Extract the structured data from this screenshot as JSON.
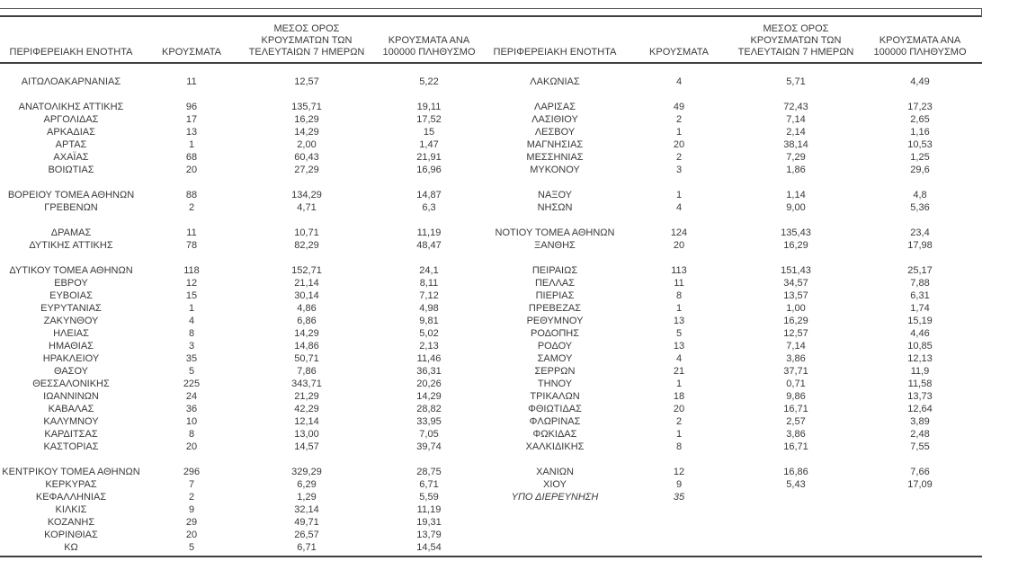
{
  "colors": {
    "text": "#3a3a3a",
    "rule_line": "#3f3f3f",
    "background": "#ffffff"
  },
  "table": {
    "headers": {
      "region": "ΠΕΡΙΦΕΡΕΙΑΚΗ ΕΝΟΤΗΤΑ",
      "cases": "ΚΡΟΥΣΜΑΤΑ",
      "avg_7day": "ΜΕΣΟΣ ΟΡΟΣ ΚΡΟΥΣΜΑΤΩΝ ΤΩΝ ΤΕΛΕΥΤΑΙΩΝ 7 ΗΜΕΡΩΝ",
      "per_100k": "ΚΡΟΥΣΜΑΤΑ ΑΝΑ 100000 ΠΛΗΘΥΣΜΟ"
    },
    "left_rows": [
      {
        "region": "ΑΙΤΩΛΟΑΚΑΡΝΑΝΙΑΣ",
        "cases": "11",
        "avg_7day": "12,57",
        "per_100k": "5,22"
      },
      null,
      {
        "region": "ΑΝΑΤΟΛΙΚΗΣ ΑΤΤΙΚΗΣ",
        "cases": "96",
        "avg_7day": "135,71",
        "per_100k": "19,11"
      },
      {
        "region": "ΑΡΓΟΛΙΔΑΣ",
        "cases": "17",
        "avg_7day": "16,29",
        "per_100k": "17,52"
      },
      {
        "region": "ΑΡΚΑΔΙΑΣ",
        "cases": "13",
        "avg_7day": "14,29",
        "per_100k": "15"
      },
      {
        "region": "ΑΡΤΑΣ",
        "cases": "1",
        "avg_7day": "2,00",
        "per_100k": "1,47"
      },
      {
        "region": "ΑΧΑΪΑΣ",
        "cases": "68",
        "avg_7day": "60,43",
        "per_100k": "21,91"
      },
      {
        "region": "ΒΟΙΩΤΙΑΣ",
        "cases": "20",
        "avg_7day": "27,29",
        "per_100k": "16,96"
      },
      null,
      {
        "region": "ΒΟΡΕΙΟΥ ΤΟΜΕΑ ΑΘΗΝΩΝ",
        "cases": "88",
        "avg_7day": "134,29",
        "per_100k": "14,87"
      },
      {
        "region": "ΓΡΕΒΕΝΩΝ",
        "cases": "2",
        "avg_7day": "4,71",
        "per_100k": "6,3"
      },
      null,
      {
        "region": "ΔΡΑΜΑΣ",
        "cases": "11",
        "avg_7day": "10,71",
        "per_100k": "11,19"
      },
      {
        "region": "ΔΥΤΙΚΗΣ ΑΤΤΙΚΗΣ",
        "cases": "78",
        "avg_7day": "82,29",
        "per_100k": "48,47"
      },
      null,
      {
        "region": "ΔΥΤΙΚΟΥ ΤΟΜΕΑ ΑΘΗΝΩΝ",
        "cases": "118",
        "avg_7day": "152,71",
        "per_100k": "24,1"
      },
      {
        "region": "ΕΒΡΟΥ",
        "cases": "12",
        "avg_7day": "21,14",
        "per_100k": "8,11"
      },
      {
        "region": "ΕΥΒΟΙΑΣ",
        "cases": "15",
        "avg_7day": "30,14",
        "per_100k": "7,12"
      },
      {
        "region": "ΕΥΡΥΤΑΝΙΑΣ",
        "cases": "1",
        "avg_7day": "4,86",
        "per_100k": "4,98"
      },
      {
        "region": "ΖΑΚΥΝΘΟΥ",
        "cases": "4",
        "avg_7day": "6,86",
        "per_100k": "9,81"
      },
      {
        "region": "ΗΛΕΙΑΣ",
        "cases": "8",
        "avg_7day": "14,29",
        "per_100k": "5,02"
      },
      {
        "region": "ΗΜΑΘΙΑΣ",
        "cases": "3",
        "avg_7day": "14,86",
        "per_100k": "2,13"
      },
      {
        "region": "ΗΡΑΚΛΕΙΟΥ",
        "cases": "35",
        "avg_7day": "50,71",
        "per_100k": "11,46"
      },
      {
        "region": "ΘΑΣΟΥ",
        "cases": "5",
        "avg_7day": "7,86",
        "per_100k": "36,31"
      },
      {
        "region": "ΘΕΣΣΑΛΟΝΙΚΗΣ",
        "cases": "225",
        "avg_7day": "343,71",
        "per_100k": "20,26"
      },
      {
        "region": "ΙΩΑΝΝΙΝΩΝ",
        "cases": "24",
        "avg_7day": "21,29",
        "per_100k": "14,29"
      },
      {
        "region": "ΚΑΒΑΛΑΣ",
        "cases": "36",
        "avg_7day": "42,29",
        "per_100k": "28,82"
      },
      {
        "region": "ΚΑΛΥΜΝΟΥ",
        "cases": "10",
        "avg_7day": "12,14",
        "per_100k": "33,95"
      },
      {
        "region": "ΚΑΡΔΙΤΣΑΣ",
        "cases": "8",
        "avg_7day": "13,00",
        "per_100k": "7,05"
      },
      {
        "region": "ΚΑΣΤΟΡΙΑΣ",
        "cases": "20",
        "avg_7day": "14,57",
        "per_100k": "39,74"
      },
      null,
      {
        "region": "ΚΕΝΤΡΙΚΟΥ ΤΟΜΕΑ ΑΘΗΝΩΝ",
        "cases": "296",
        "avg_7day": "329,29",
        "per_100k": "28,75"
      },
      {
        "region": "ΚΕΡΚΥΡΑΣ",
        "cases": "7",
        "avg_7day": "6,29",
        "per_100k": "6,71"
      },
      {
        "region": "ΚΕΦΑΛΛΗΝΙΑΣ",
        "cases": "2",
        "avg_7day": "1,29",
        "per_100k": "5,59"
      },
      {
        "region": "ΚΙΛΚΙΣ",
        "cases": "9",
        "avg_7day": "32,14",
        "per_100k": "11,19"
      },
      {
        "region": "ΚΟΖΑΝΗΣ",
        "cases": "29",
        "avg_7day": "49,71",
        "per_100k": "19,31"
      },
      {
        "region": "ΚΟΡΙΝΘΙΑΣ",
        "cases": "20",
        "avg_7day": "26,57",
        "per_100k": "13,79"
      },
      {
        "region": "ΚΩ",
        "cases": "5",
        "avg_7day": "6,71",
        "per_100k": "14,54"
      }
    ],
    "right_rows": [
      {
        "region": "ΛΑΚΩΝΙΑΣ",
        "cases": "4",
        "avg_7day": "5,71",
        "per_100k": "4,49"
      },
      null,
      {
        "region": "ΛΑΡΙΣΑΣ",
        "cases": "49",
        "avg_7day": "72,43",
        "per_100k": "17,23"
      },
      {
        "region": "ΛΑΣΙΘΙΟΥ",
        "cases": "2",
        "avg_7day": "7,14",
        "per_100k": "2,65"
      },
      {
        "region": "ΛΕΣΒΟΥ",
        "cases": "1",
        "avg_7day": "2,14",
        "per_100k": "1,16"
      },
      {
        "region": "ΜΑΓΝΗΣΙΑΣ",
        "cases": "20",
        "avg_7day": "38,14",
        "per_100k": "10,53"
      },
      {
        "region": "ΜΕΣΣΗΝΙΑΣ",
        "cases": "2",
        "avg_7day": "7,29",
        "per_100k": "1,25"
      },
      {
        "region": "ΜΥΚΟΝΟΥ",
        "cases": "3",
        "avg_7day": "1,86",
        "per_100k": "29,6"
      },
      null,
      {
        "region": "ΝΑΞΟΥ",
        "cases": "1",
        "avg_7day": "1,14",
        "per_100k": "4,8"
      },
      {
        "region": "ΝΗΣΩΝ",
        "cases": "4",
        "avg_7day": "9,00",
        "per_100k": "5,36"
      },
      null,
      {
        "region": "ΝΟΤΙΟΥ ΤΟΜΕΑ ΑΘΗΝΩΝ",
        "cases": "124",
        "avg_7day": "135,43",
        "per_100k": "23,4"
      },
      {
        "region": "ΞΑΝΘΗΣ",
        "cases": "20",
        "avg_7day": "16,29",
        "per_100k": "17,98"
      },
      null,
      {
        "region": "ΠΕΙΡΑΙΩΣ",
        "cases": "113",
        "avg_7day": "151,43",
        "per_100k": "25,17"
      },
      {
        "region": "ΠΕΛΛΑΣ",
        "cases": "11",
        "avg_7day": "34,57",
        "per_100k": "7,88"
      },
      {
        "region": "ΠΙΕΡΙΑΣ",
        "cases": "8",
        "avg_7day": "13,57",
        "per_100k": "6,31"
      },
      {
        "region": "ΠΡΕΒΕΖΑΣ",
        "cases": "1",
        "avg_7day": "1,00",
        "per_100k": "1,74"
      },
      {
        "region": "ΡΕΘΥΜΝΟΥ",
        "cases": "13",
        "avg_7day": "16,29",
        "per_100k": "15,19"
      },
      {
        "region": "ΡΟΔΟΠΗΣ",
        "cases": "5",
        "avg_7day": "12,57",
        "per_100k": "4,46"
      },
      {
        "region": "ΡΟΔΟΥ",
        "cases": "13",
        "avg_7day": "7,14",
        "per_100k": "10,85"
      },
      {
        "region": "ΣΑΜΟΥ",
        "cases": "4",
        "avg_7day": "3,86",
        "per_100k": "12,13"
      },
      {
        "region": "ΣΕΡΡΩΝ",
        "cases": "21",
        "avg_7day": "37,71",
        "per_100k": "11,9"
      },
      {
        "region": "ΤΗΝΟΥ",
        "cases": "1",
        "avg_7day": "0,71",
        "per_100k": "11,58"
      },
      {
        "region": "ΤΡΙΚΑΛΩΝ",
        "cases": "18",
        "avg_7day": "9,86",
        "per_100k": "13,73"
      },
      {
        "region": "ΦΘΙΩΤΙΔΑΣ",
        "cases": "20",
        "avg_7day": "16,71",
        "per_100k": "12,64"
      },
      {
        "region": "ΦΛΩΡΙΝΑΣ",
        "cases": "2",
        "avg_7day": "2,57",
        "per_100k": "3,89"
      },
      {
        "region": "ΦΩΚΙΔΑΣ",
        "cases": "1",
        "avg_7day": "3,86",
        "per_100k": "2,48"
      },
      {
        "region": "ΧΑΛΚΙΔΙΚΗΣ",
        "cases": "8",
        "avg_7day": "16,71",
        "per_100k": "7,55"
      },
      null,
      {
        "region": "ΧΑΝΙΩΝ",
        "cases": "12",
        "avg_7day": "16,86",
        "per_100k": "7,66"
      },
      {
        "region": "ΧΙΟΥ",
        "cases": "9",
        "avg_7day": "5,43",
        "per_100k": "17,09"
      },
      {
        "region": "ΥΠΟ ΔΙΕΡΕΥΝΗΣΗ",
        "cases": "35",
        "avg_7day": "",
        "per_100k": "",
        "italic": true
      },
      null,
      null,
      null,
      null
    ]
  }
}
